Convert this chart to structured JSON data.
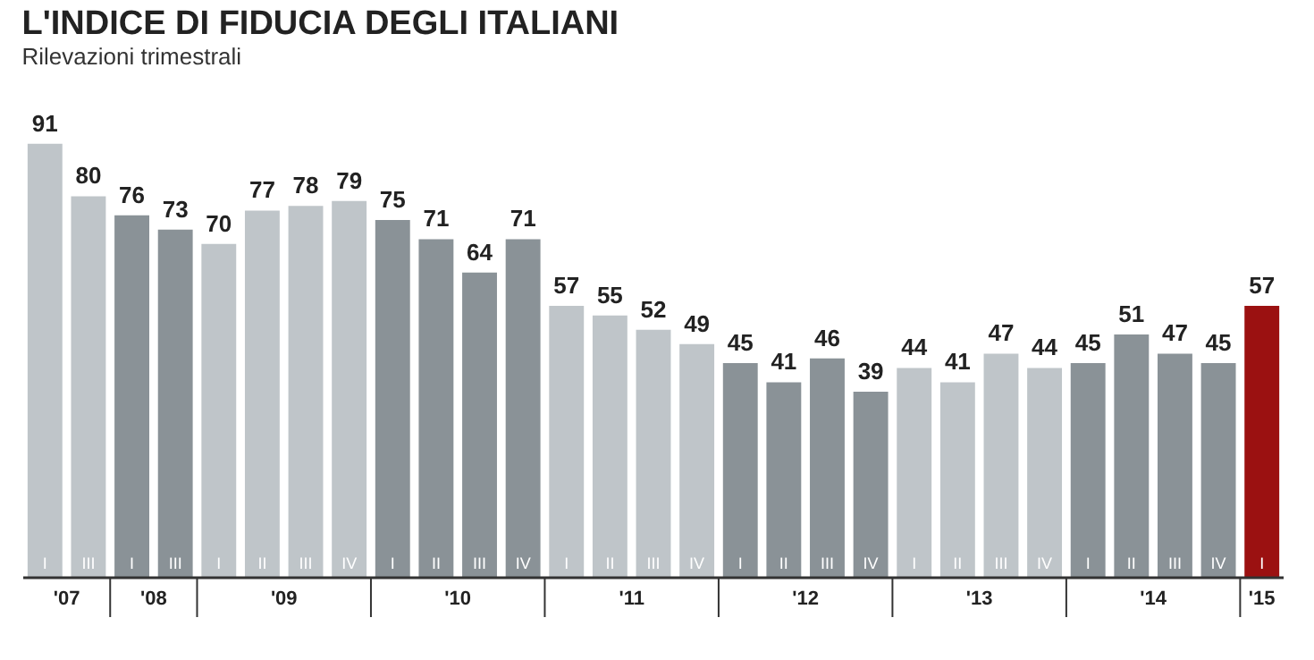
{
  "chart_data": {
    "type": "bar",
    "title": "L'INDICE DI FIDUCIA DEGLI ITALIANI",
    "subtitle": "Rilevazioni trimestrali",
    "categories": [
      "I",
      "III",
      "I",
      "III",
      "I",
      "II",
      "III",
      "IV",
      "I",
      "II",
      "III",
      "IV",
      "I",
      "II",
      "III",
      "IV",
      "I",
      "II",
      "III",
      "IV",
      "I",
      "II",
      "III",
      "IV",
      "I",
      "II",
      "III",
      "IV",
      "I"
    ],
    "values": [
      91,
      80,
      76,
      73,
      70,
      77,
      78,
      79,
      75,
      71,
      64,
      71,
      57,
      55,
      52,
      49,
      45,
      41,
      46,
      39,
      44,
      41,
      47,
      44,
      45,
      51,
      47,
      45,
      57
    ],
    "colors": [
      "#bfc5c9",
      "#bfc5c9",
      "#8a9297",
      "#8a9297",
      "#bfc5c9",
      "#bfc5c9",
      "#bfc5c9",
      "#bfc5c9",
      "#8a9297",
      "#8a9297",
      "#8a9297",
      "#8a9297",
      "#bfc5c9",
      "#bfc5c9",
      "#bfc5c9",
      "#bfc5c9",
      "#8a9297",
      "#8a9297",
      "#8a9297",
      "#8a9297",
      "#bfc5c9",
      "#bfc5c9",
      "#bfc5c9",
      "#bfc5c9",
      "#8a9297",
      "#8a9297",
      "#8a9297",
      "#8a9297",
      "#9b1111"
    ],
    "annotations": [
      "'07",
      "'08",
      "'09",
      "'10",
      "'11",
      "'12",
      "'13",
      "'14",
      "'15"
    ],
    "data_labels": true
  }
}
